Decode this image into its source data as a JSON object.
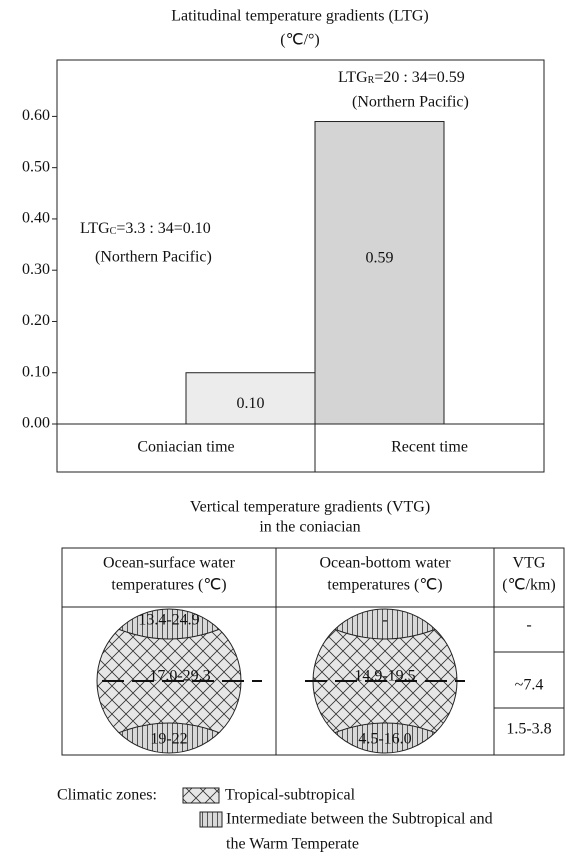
{
  "chart_data": {
    "type": "bar",
    "title": "Latitudinal temperature gradients (LTG)",
    "subtitle": "(℃/°)",
    "categories": [
      "Coniacian time",
      "Recent time"
    ],
    "values": [
      0.1,
      0.59
    ],
    "value_labels": [
      "0.10",
      "0.59"
    ],
    "colors": [
      "#ececec",
      "#d4d4d4"
    ],
    "ylim": [
      0,
      0.71
    ],
    "yticks": [
      {
        "value": 0,
        "label": "0.00"
      },
      {
        "value": 0.1,
        "label": "0.10"
      },
      {
        "value": 0.2,
        "label": "0.20"
      },
      {
        "value": 0.3,
        "label": "0.30"
      },
      {
        "value": 0.4,
        "label": "0.40"
      },
      {
        "value": 0.5,
        "label": "0.50"
      },
      {
        "value": 0.6,
        "label": "0.60"
      }
    ],
    "annotations": [
      {
        "main": "LTG",
        "subscript": "C",
        "text": "=3.3 : 34=0.10",
        "note": "(Northern Pacific)"
      },
      {
        "main": "LTG",
        "subscript": "R",
        "text": "=20 : 34=0.59",
        "note": "(Northern Pacific)"
      }
    ]
  },
  "vtg_figure": {
    "title": [
      "Vertical temperature gradients (VTG)",
      "in the coniacian"
    ],
    "headers": [
      [
        "Ocean-surface water",
        "temperatures (℃)"
      ],
      [
        "Ocean-bottom water",
        "temperatures (℃)"
      ],
      [
        "VTG",
        "(℃/km)"
      ]
    ],
    "surface_labels": [
      "13.4-24.9",
      "17.0-29.3",
      "19-22"
    ],
    "bottom_labels": [
      "-",
      "14.9-19.5",
      "4.5-16.0"
    ],
    "vtg_values": [
      "-",
      "~7.4",
      "1.5-3.8"
    ]
  },
  "legend": {
    "label": "Climatic zones:",
    "items": [
      [
        "Tropical-subtropical"
      ],
      [
        "Intermediate between the Subtropical and",
        "the Warm Temperate"
      ]
    ]
  }
}
